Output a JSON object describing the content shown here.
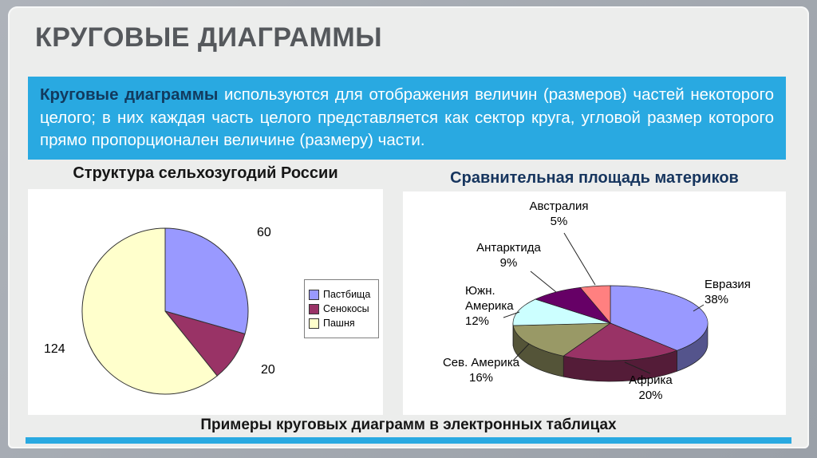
{
  "slide": {
    "title": "КРУГОВЫЕ ДИАГРАММЫ",
    "definition": {
      "lead": "Круговые диаграммы",
      "rest": " используются для отображения величин (размеров) частей некоторого целого; в них каждая часть целого представляется как сектор круга, угловой размер которого прямо пропорционален величине (размеру) части."
    },
    "caption": "Примеры круговых диаграмм в электронных таблицах"
  },
  "colors": {
    "accent_blue": "#29a9e1",
    "frame_gray": "#a6abb3",
    "slide_bg": "#ecedec",
    "title_gray": "#55585c"
  },
  "chart_data": [
    {
      "type": "pie",
      "title": "Структура сельхозугодий России",
      "direction": "clockwise",
      "start_angle_deg": 0,
      "legend_position": "right",
      "series": [
        {
          "label": "Пастбища",
          "value": 60,
          "color": "#9999ff"
        },
        {
          "label": "Сенокосы",
          "value": 20,
          "color": "#993366"
        },
        {
          "label": "Пашня",
          "value": 124,
          "color": "#ffffcc"
        }
      ]
    },
    {
      "type": "pie-3d",
      "title": "Сравнительная площадь материков",
      "direction": "clockwise",
      "start_angle_deg": 0,
      "unit": "%",
      "series": [
        {
          "label": "Евразия",
          "pct_label": "38%",
          "value": 38,
          "color": "#9999ff"
        },
        {
          "label": "Африка",
          "pct_label": "20%",
          "value": 20,
          "color": "#993366"
        },
        {
          "label": "Сев. Америка",
          "pct_label": "16%",
          "value": 16,
          "color": "#999966"
        },
        {
          "label": "Южн. Америка",
          "pct_label": "12%",
          "value": 12,
          "color": "#ccffff"
        },
        {
          "label": "Антарктида",
          "pct_label": "9%",
          "value": 9,
          "color": "#660066"
        },
        {
          "label": "Австралия",
          "pct_label": "5%",
          "value": 5,
          "color": "#ff8080"
        }
      ]
    }
  ]
}
